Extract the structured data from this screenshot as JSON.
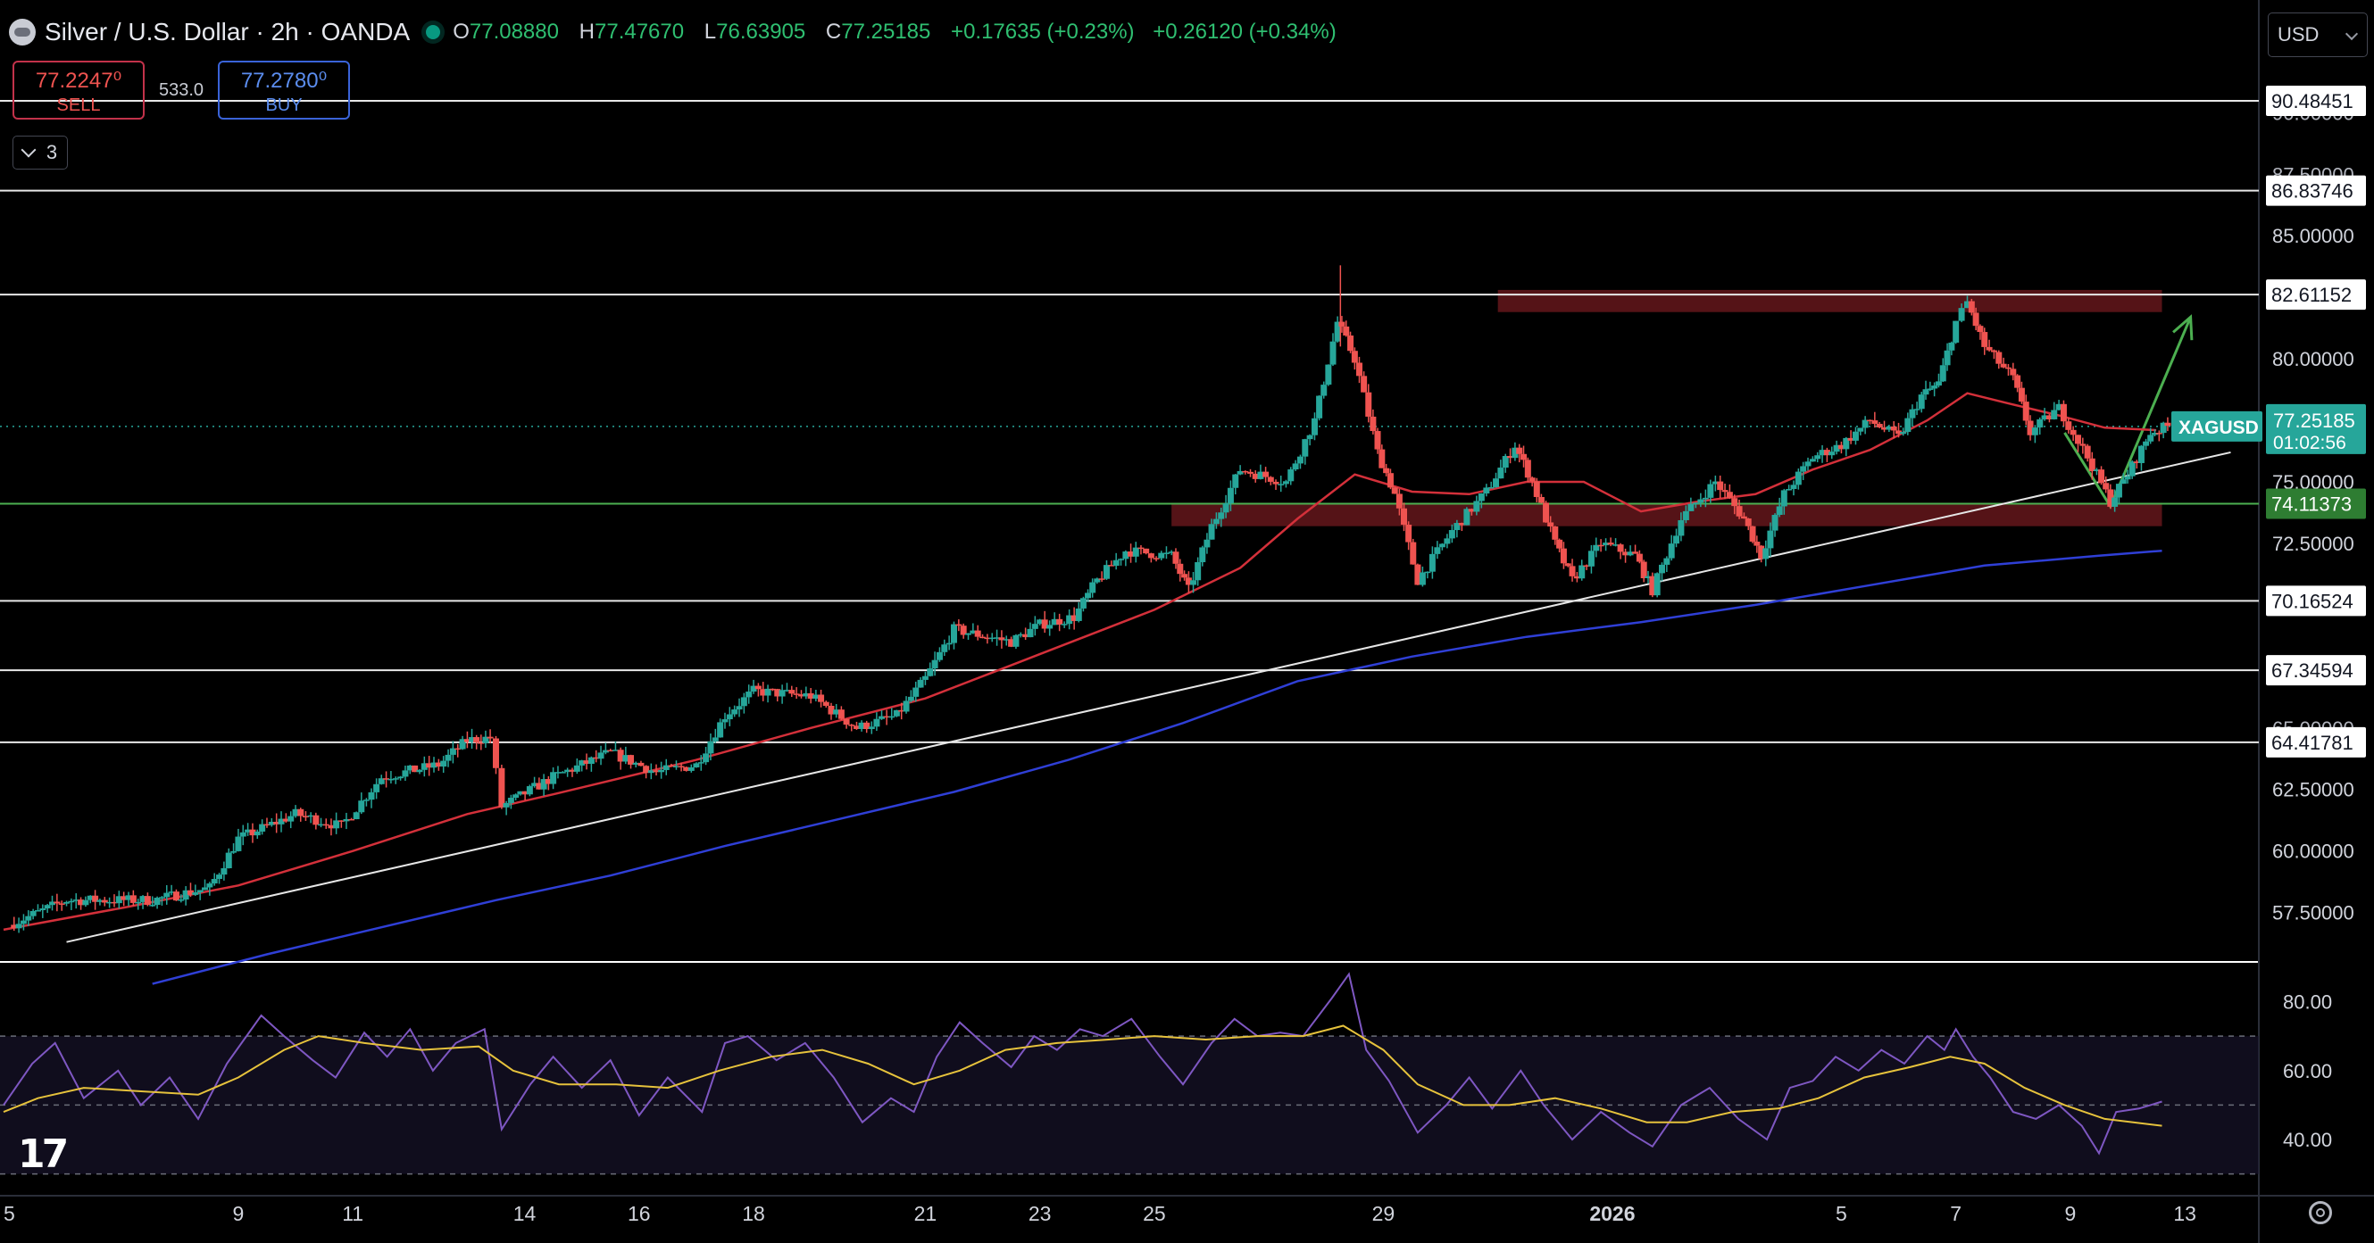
{
  "header": {
    "title": "Silver / U.S. Dollar · 2h · OANDA",
    "o_label": "O",
    "o_value": "77.08880",
    "h_label": "H",
    "h_value": "77.47670",
    "l_label": "L",
    "l_value": "76.63905",
    "c_label": "C",
    "c_value": "77.25185",
    "change": "+0.17635 (+0.23%)",
    "change2": "+0.26120 (+0.34%)"
  },
  "trade": {
    "sell_price": "77.2247⁰",
    "sell_label": "SELL",
    "spread": "533.0",
    "buy_price": "77.2780⁰",
    "buy_label": "BUY"
  },
  "indicator_toggle": {
    "count": "3"
  },
  "currency": "USD",
  "colors": {
    "up": "#26a69a",
    "down": "#ef5350",
    "ma_fast": "#d3303a",
    "ma_slow": "#2f3fd6",
    "rsi": "#7e57c2",
    "rsi_ma": "#e6c23c",
    "arrow": "#4caf50",
    "zone": "#5a1418",
    "price_label": "#26a69a",
    "support_label": "#2e7d32"
  },
  "chart_data": {
    "type": "candlestick",
    "symbol": "XAGUSD",
    "timeframe": "2h",
    "ylim": [
      55.6,
      91.5
    ],
    "y_ticks": [
      "85.00000",
      "80.00000",
      "75.00000",
      "72.50000",
      "62.50000",
      "60.00000",
      "57.50000"
    ],
    "partial_ticks": [
      {
        "price": 90.0,
        "label": "90.00000"
      },
      {
        "price": 87.5,
        "label": "87.50000"
      },
      {
        "price": 65.0,
        "label": "65.00000"
      }
    ],
    "x_ticks": [
      {
        "day": 5,
        "label": "5"
      },
      {
        "day": 9,
        "label": "9"
      },
      {
        "day": 11,
        "label": "11"
      },
      {
        "day": 14,
        "label": "14"
      },
      {
        "day": 16,
        "label": "16"
      },
      {
        "day": 18,
        "label": "18"
      },
      {
        "day": 21,
        "label": "21"
      },
      {
        "day": 23,
        "label": "23"
      },
      {
        "day": 25,
        "label": "25"
      },
      {
        "day": 29,
        "label": "29"
      },
      {
        "day": 33,
        "label": "2026"
      },
      {
        "day": 37,
        "label": "5"
      },
      {
        "day": 39,
        "label": "7"
      },
      {
        "day": 41,
        "label": "9"
      },
      {
        "day": 43,
        "label": "13"
      }
    ],
    "horizontal_levels": [
      "90.48451",
      "86.83746",
      "82.61152",
      "70.16524",
      "67.34594",
      "64.41781"
    ],
    "support_level": "74.11373",
    "last_price": "77.25185",
    "countdown": "01:02:56",
    "resistance_zone": {
      "from_day": 31.0,
      "to_day": 42.6,
      "low": 81.9,
      "high": 82.8
    },
    "support_zone": {
      "from_day": 25.3,
      "to_day": 42.6,
      "low": 73.2,
      "high": 74.15
    },
    "trendline": [
      [
        6.0,
        56.3
      ],
      [
        43.8,
        76.2
      ]
    ],
    "projection": [
      [
        40.9,
        77.0
      ],
      [
        41.7,
        74.0
      ],
      [
        43.1,
        81.7
      ]
    ],
    "key_points": [
      [
        5.0,
        57.0
      ],
      [
        6.0,
        58.0
      ],
      [
        7.5,
        58.0
      ],
      [
        8.5,
        58.5
      ],
      [
        9.0,
        60.5
      ],
      [
        10.0,
        61.5
      ],
      [
        10.8,
        61.0
      ],
      [
        11.5,
        63.0
      ],
      [
        12.5,
        63.5
      ],
      [
        13.0,
        64.5
      ],
      [
        13.4,
        64.6
      ],
      [
        13.6,
        61.8
      ],
      [
        14.5,
        63.0
      ],
      [
        15.5,
        64.0
      ],
      [
        16.3,
        63.2
      ],
      [
        17.0,
        63.5
      ],
      [
        17.5,
        65.5
      ],
      [
        18.0,
        66.5
      ],
      [
        19.0,
        66.3
      ],
      [
        19.8,
        65.0
      ],
      [
        20.5,
        65.5
      ],
      [
        21.0,
        67.0
      ],
      [
        21.5,
        69.0
      ],
      [
        22.5,
        68.5
      ],
      [
        23.0,
        69.2
      ],
      [
        23.6,
        69.5
      ],
      [
        24.0,
        71.0
      ],
      [
        24.5,
        72.2
      ],
      [
        25.3,
        72.0
      ],
      [
        25.6,
        70.6
      ],
      [
        26.0,
        73.2
      ],
      [
        26.5,
        75.5
      ],
      [
        27.3,
        75.0
      ],
      [
        27.8,
        77.5
      ],
      [
        28.2,
        81.5
      ],
      [
        28.5,
        80.0
      ],
      [
        28.9,
        76.2
      ],
      [
        29.2,
        74.5
      ],
      [
        29.6,
        71.0
      ],
      [
        30.2,
        73.0
      ],
      [
        30.8,
        74.6
      ],
      [
        31.3,
        76.5
      ],
      [
        31.6,
        75.0
      ],
      [
        32.0,
        72.5
      ],
      [
        32.3,
        71.0
      ],
      [
        32.8,
        72.5
      ],
      [
        33.4,
        72.0
      ],
      [
        33.7,
        70.6
      ],
      [
        34.2,
        73.5
      ],
      [
        34.8,
        75.0
      ],
      [
        35.3,
        73.5
      ],
      [
        35.6,
        72.0
      ],
      [
        36.0,
        74.5
      ],
      [
        36.5,
        76.0
      ],
      [
        37.0,
        76.5
      ],
      [
        37.5,
        77.5
      ],
      [
        38.0,
        76.8
      ],
      [
        38.4,
        78.5
      ],
      [
        38.7,
        79.0
      ],
      [
        39.0,
        81.5
      ],
      [
        39.2,
        82.3
      ],
      [
        39.5,
        80.5
      ],
      [
        40.0,
        79.2
      ],
      [
        40.3,
        77.0
      ],
      [
        40.8,
        78.0
      ],
      [
        41.3,
        76.0
      ],
      [
        41.7,
        74.2
      ],
      [
        42.0,
        75.3
      ],
      [
        42.4,
        77.0
      ],
      [
        42.7,
        77.25
      ]
    ],
    "ma_fast": [
      [
        4.9,
        56.8
      ],
      [
        7.0,
        57.7
      ],
      [
        9.0,
        58.6
      ],
      [
        11.0,
        60.0
      ],
      [
        13.0,
        61.5
      ],
      [
        14.5,
        62.3
      ],
      [
        17.0,
        63.7
      ],
      [
        19.0,
        65.0
      ],
      [
        21.0,
        66.2
      ],
      [
        23.0,
        68.0
      ],
      [
        25.0,
        69.8
      ],
      [
        26.5,
        71.5
      ],
      [
        27.5,
        73.5
      ],
      [
        28.5,
        75.3
      ],
      [
        29.5,
        74.6
      ],
      [
        30.5,
        74.5
      ],
      [
        31.5,
        75.0
      ],
      [
        32.5,
        75.0
      ],
      [
        33.5,
        73.8
      ],
      [
        34.5,
        74.2
      ],
      [
        35.5,
        74.5
      ],
      [
        36.5,
        75.5
      ],
      [
        37.5,
        76.3
      ],
      [
        38.5,
        77.5
      ],
      [
        39.2,
        78.6
      ],
      [
        39.9,
        78.2
      ],
      [
        40.8,
        77.7
      ],
      [
        41.6,
        77.2
      ],
      [
        42.5,
        77.1
      ]
    ],
    "ma_slow": [
      [
        7.5,
        54.6
      ],
      [
        9.5,
        55.8
      ],
      [
        11.5,
        56.9
      ],
      [
        13.5,
        58.0
      ],
      [
        15.5,
        59.0
      ],
      [
        17.5,
        60.2
      ],
      [
        19.5,
        61.3
      ],
      [
        21.5,
        62.4
      ],
      [
        23.5,
        63.7
      ],
      [
        25.5,
        65.2
      ],
      [
        27.5,
        66.9
      ],
      [
        29.5,
        67.9
      ],
      [
        31.5,
        68.7
      ],
      [
        33.5,
        69.3
      ],
      [
        35.5,
        70.0
      ],
      [
        37.5,
        70.8
      ],
      [
        39.5,
        71.6
      ],
      [
        41.5,
        72.0
      ],
      [
        42.6,
        72.2
      ]
    ],
    "rsi": {
      "ylim": [
        25,
        91
      ],
      "y_ticks": [
        "80.00",
        "60.00",
        "40.00"
      ],
      "bands": [
        70,
        50,
        30
      ],
      "rsi_points": [
        [
          4.9,
          50
        ],
        [
          5.4,
          62
        ],
        [
          5.8,
          68
        ],
        [
          6.3,
          52
        ],
        [
          6.9,
          60
        ],
        [
          7.3,
          50
        ],
        [
          7.8,
          58
        ],
        [
          8.3,
          46
        ],
        [
          8.8,
          62
        ],
        [
          9.4,
          76
        ],
        [
          9.8,
          70
        ],
        [
          10.3,
          63
        ],
        [
          10.7,
          58
        ],
        [
          11.2,
          71
        ],
        [
          11.6,
          64
        ],
        [
          12.0,
          72
        ],
        [
          12.4,
          60
        ],
        [
          12.8,
          68
        ],
        [
          13.3,
          72
        ],
        [
          13.6,
          43
        ],
        [
          14.1,
          56
        ],
        [
          14.5,
          64
        ],
        [
          15.0,
          55
        ],
        [
          15.5,
          63
        ],
        [
          16.0,
          47
        ],
        [
          16.5,
          58
        ],
        [
          17.1,
          48
        ],
        [
          17.5,
          68
        ],
        [
          17.9,
          70
        ],
        [
          18.4,
          63
        ],
        [
          18.9,
          68
        ],
        [
          19.4,
          58
        ],
        [
          19.9,
          45
        ],
        [
          20.4,
          52
        ],
        [
          20.8,
          48
        ],
        [
          21.2,
          64
        ],
        [
          21.6,
          74
        ],
        [
          22.0,
          68
        ],
        [
          22.5,
          61
        ],
        [
          22.9,
          70
        ],
        [
          23.3,
          66
        ],
        [
          23.7,
          72
        ],
        [
          24.1,
          70
        ],
        [
          24.6,
          75
        ],
        [
          25.1,
          64
        ],
        [
          25.5,
          56
        ],
        [
          26.0,
          68
        ],
        [
          26.4,
          75
        ],
        [
          26.8,
          70
        ],
        [
          27.2,
          71
        ],
        [
          27.6,
          70
        ],
        [
          28.1,
          81
        ],
        [
          28.4,
          88
        ],
        [
          28.7,
          66
        ],
        [
          29.1,
          57
        ],
        [
          29.6,
          42
        ],
        [
          30.1,
          50
        ],
        [
          30.5,
          58
        ],
        [
          30.9,
          49
        ],
        [
          31.4,
          60
        ],
        [
          31.8,
          50
        ],
        [
          32.3,
          40
        ],
        [
          32.8,
          48
        ],
        [
          33.3,
          42
        ],
        [
          33.7,
          38
        ],
        [
          34.2,
          50
        ],
        [
          34.7,
          55
        ],
        [
          35.2,
          46
        ],
        [
          35.7,
          40
        ],
        [
          36.1,
          55
        ],
        [
          36.5,
          57
        ],
        [
          36.9,
          64
        ],
        [
          37.3,
          60
        ],
        [
          37.7,
          66
        ],
        [
          38.1,
          62
        ],
        [
          38.5,
          70
        ],
        [
          38.8,
          66
        ],
        [
          39.0,
          72
        ],
        [
          39.3,
          64
        ],
        [
          39.6,
          58
        ],
        [
          40.0,
          48
        ],
        [
          40.4,
          46
        ],
        [
          40.8,
          50
        ],
        [
          41.2,
          44
        ],
        [
          41.5,
          36
        ],
        [
          41.8,
          48
        ],
        [
          42.2,
          49
        ],
        [
          42.6,
          51
        ]
      ],
      "ma_points": [
        [
          4.9,
          48
        ],
        [
          5.5,
          52
        ],
        [
          6.3,
          55
        ],
        [
          7.3,
          54
        ],
        [
          8.3,
          53
        ],
        [
          9.0,
          58
        ],
        [
          9.8,
          66
        ],
        [
          10.4,
          70
        ],
        [
          11.2,
          68
        ],
        [
          12.2,
          66
        ],
        [
          13.2,
          67
        ],
        [
          13.8,
          60
        ],
        [
          14.6,
          56
        ],
        [
          15.6,
          56
        ],
        [
          16.5,
          55
        ],
        [
          17.4,
          60
        ],
        [
          18.3,
          64
        ],
        [
          19.2,
          66
        ],
        [
          20.0,
          62
        ],
        [
          20.8,
          56
        ],
        [
          21.6,
          60
        ],
        [
          22.4,
          66
        ],
        [
          23.3,
          68
        ],
        [
          24.2,
          69
        ],
        [
          25.0,
          70
        ],
        [
          25.9,
          69
        ],
        [
          26.8,
          70
        ],
        [
          27.6,
          70
        ],
        [
          28.3,
          73
        ],
        [
          29.0,
          66
        ],
        [
          29.6,
          56
        ],
        [
          30.4,
          50
        ],
        [
          31.2,
          50
        ],
        [
          32.0,
          52
        ],
        [
          32.8,
          49
        ],
        [
          33.6,
          45
        ],
        [
          34.3,
          45
        ],
        [
          35.1,
          48
        ],
        [
          35.9,
          49
        ],
        [
          36.6,
          52
        ],
        [
          37.4,
          58
        ],
        [
          38.2,
          61
        ],
        [
          38.9,
          64
        ],
        [
          39.5,
          62
        ],
        [
          40.2,
          55
        ],
        [
          40.9,
          50
        ],
        [
          41.6,
          46
        ],
        [
          42.6,
          44
        ]
      ]
    }
  }
}
